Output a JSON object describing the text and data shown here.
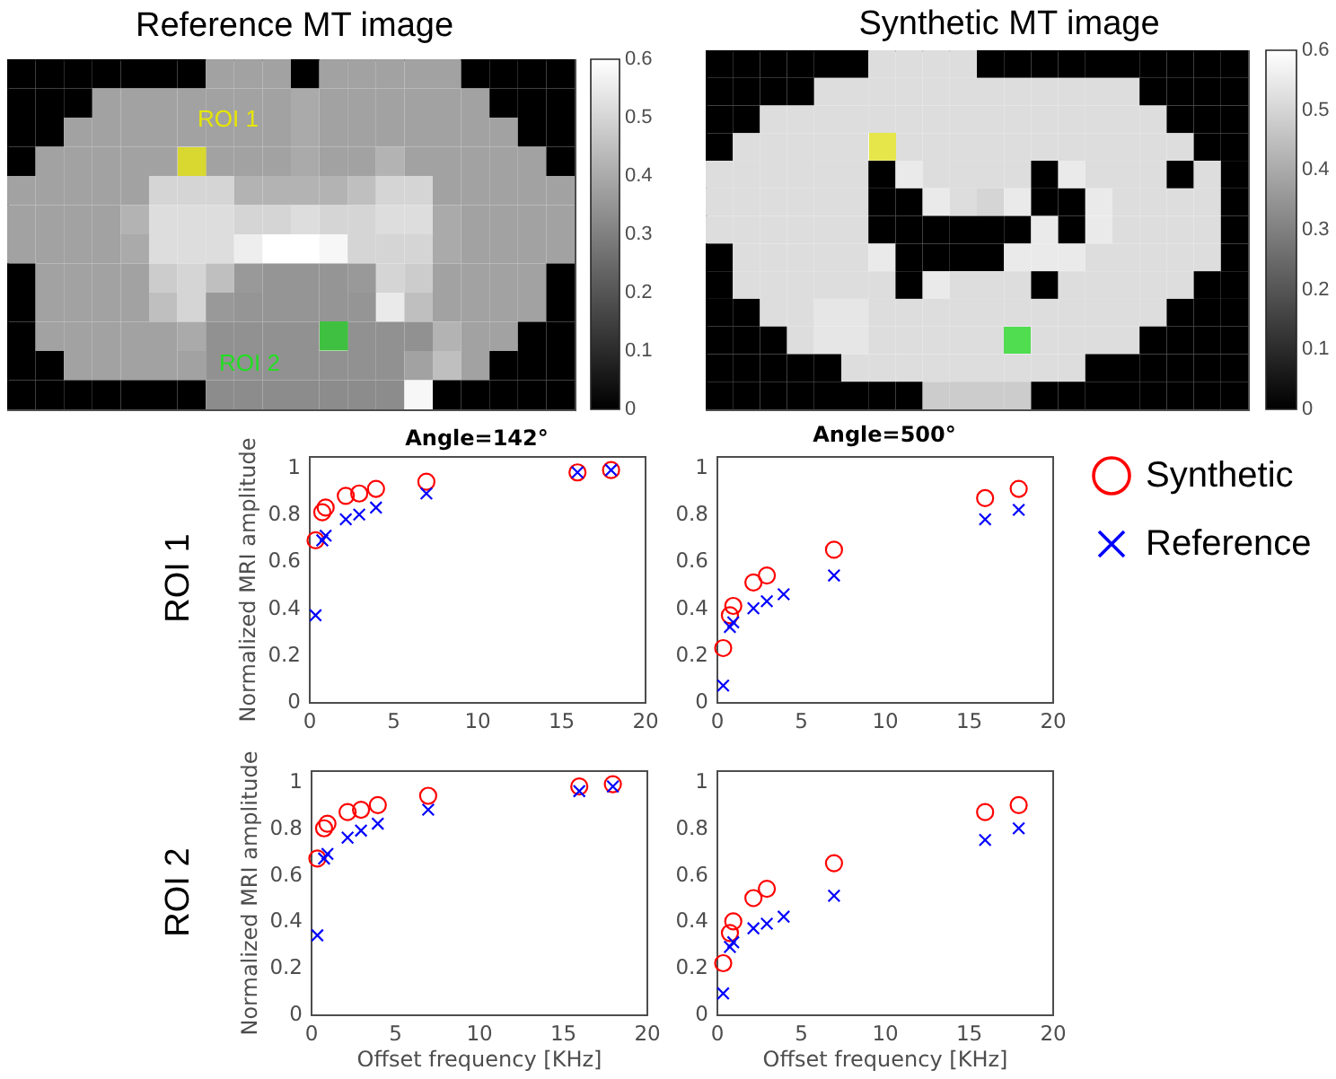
{
  "chart_data": [
    {
      "type": "heatmap",
      "title": "Reference MT image",
      "annotations": [
        "ROI 1",
        "ROI 2"
      ],
      "tick_labels": false,
      "categories": [
        null,
        null,
        null,
        null,
        null,
        null,
        null,
        null,
        null,
        null,
        null,
        null,
        null,
        null,
        null,
        null,
        null,
        null,
        null,
        null
      ],
      "y_categories": [
        null,
        null,
        null,
        null,
        null,
        null,
        null,
        null,
        null,
        null,
        null,
        null
      ],
      "cells": [
        [
          0,
          0,
          0,
          0,
          0,
          0,
          0,
          0.38,
          0.38,
          0.38,
          0,
          0.38,
          0.38,
          0.38,
          0.38,
          0.38,
          0,
          0,
          0,
          0
        ],
        [
          0,
          0,
          0,
          0.38,
          0.38,
          0.38,
          0.38,
          0.38,
          0.38,
          0.38,
          0.4,
          0.38,
          0.38,
          0.38,
          0.38,
          0.38,
          0.38,
          0,
          0,
          0
        ],
        [
          0,
          0,
          0.38,
          0.38,
          0.38,
          0.38,
          0.38,
          0.38,
          0.38,
          0.38,
          0.4,
          0.38,
          0.38,
          0.38,
          0.38,
          0.38,
          0.38,
          0.38,
          0,
          0
        ],
        [
          0,
          0.38,
          0.38,
          0.38,
          0.38,
          0.38,
          null,
          0.38,
          0.38,
          0.38,
          0.4,
          0.38,
          0.38,
          0.42,
          0.38,
          0.38,
          0.38,
          0.38,
          0.38,
          0
        ],
        [
          0.38,
          0.38,
          0.38,
          0.38,
          0.38,
          0.5,
          0.5,
          0.5,
          0.42,
          0.42,
          0.42,
          0.42,
          0.45,
          0.5,
          0.5,
          0.38,
          0.38,
          0.38,
          0.38,
          0.38
        ],
        [
          0.38,
          0.38,
          0.38,
          0.38,
          0.42,
          0.52,
          0.52,
          0.52,
          0.5,
          0.5,
          0.52,
          0.5,
          0.5,
          0.52,
          0.52,
          0.4,
          0.38,
          0.38,
          0.38,
          0.38
        ],
        [
          0.38,
          0.38,
          0.38,
          0.38,
          0.4,
          0.52,
          0.52,
          0.52,
          0.56,
          0.6,
          0.6,
          0.58,
          0.5,
          0.5,
          0.5,
          0.4,
          0.38,
          0.38,
          0.38,
          0.38
        ],
        [
          0,
          0.38,
          0.38,
          0.38,
          0.38,
          0.48,
          0.5,
          0.45,
          0.36,
          0.35,
          0.35,
          0.35,
          0.36,
          0.5,
          0.48,
          0.38,
          0.38,
          0.38,
          0.38,
          0
        ],
        [
          0,
          0.38,
          0.38,
          0.38,
          0.38,
          0.45,
          0.5,
          0.36,
          0.35,
          0.35,
          0.35,
          0.35,
          0.35,
          0.55,
          0.45,
          0.38,
          0.38,
          0.38,
          0.38,
          0
        ],
        [
          0,
          0.38,
          0.38,
          0.38,
          0.38,
          0.38,
          0.4,
          0.34,
          0.34,
          0.34,
          0.34,
          null,
          0.34,
          0.34,
          0.34,
          0.42,
          0.38,
          0.38,
          0,
          0
        ],
        [
          0,
          0,
          0.38,
          0.38,
          0.38,
          0.38,
          0.38,
          0.34,
          0.34,
          0.34,
          0.34,
          0.34,
          0.34,
          0.34,
          0.38,
          0.45,
          0.38,
          0,
          0,
          0
        ],
        [
          0,
          0,
          0,
          0,
          0,
          0,
          0,
          0.33,
          0.33,
          0.33,
          0.33,
          0.33,
          0.33,
          0.33,
          0.58,
          0,
          0,
          0,
          0,
          0
        ]
      ],
      "clim": [
        0,
        0.6
      ],
      "cticks": [
        0,
        0.1,
        0.2,
        0.3,
        0.4,
        0.5,
        0.6
      ]
    },
    {
      "type": "heatmap",
      "title": "Synthetic MT image",
      "tick_labels": false,
      "categories": [
        null,
        null,
        null,
        null,
        null,
        null,
        null,
        null,
        null,
        null,
        null,
        null,
        null,
        null,
        null,
        null,
        null,
        null,
        null,
        null
      ],
      "y_categories": [
        null,
        null,
        null,
        null,
        null,
        null,
        null,
        null,
        null,
        null,
        null,
        null,
        null
      ],
      "cells": [
        [
          0,
          0,
          0,
          0,
          0,
          0,
          0.52,
          0.52,
          0.52,
          0.52,
          0,
          0,
          0,
          0,
          0,
          0,
          0,
          0,
          0,
          0
        ],
        [
          0,
          0,
          0,
          0,
          0.52,
          0.52,
          0.52,
          0.52,
          0.52,
          0.52,
          0.52,
          0.52,
          0.52,
          0.52,
          0.52,
          0.52,
          0,
          0,
          0,
          0
        ],
        [
          0,
          0,
          0.52,
          0.52,
          0.52,
          0.52,
          0.52,
          0.52,
          0.52,
          0.52,
          0.52,
          0.52,
          0.52,
          0.52,
          0.52,
          0.52,
          0.52,
          0,
          0,
          0
        ],
        [
          0,
          0.52,
          0.52,
          0.52,
          0.52,
          0.52,
          null,
          0.52,
          0.52,
          0.52,
          0.52,
          0.52,
          0.52,
          0.52,
          0.52,
          0.52,
          0.52,
          0.52,
          0,
          0
        ],
        [
          0.52,
          0.52,
          0.52,
          0.52,
          0.52,
          0.52,
          0,
          0.55,
          0.52,
          0.52,
          0.52,
          0.52,
          0,
          0.55,
          0.52,
          0.52,
          0.52,
          0,
          0.52,
          0
        ],
        [
          0.52,
          0.52,
          0.52,
          0.52,
          0.52,
          0.52,
          0,
          0,
          0.55,
          0.52,
          0.5,
          0.55,
          0,
          0,
          0.55,
          0.52,
          0.52,
          0.52,
          0.52,
          0
        ],
        [
          0.52,
          0.52,
          0.52,
          0.52,
          0.52,
          0.52,
          0,
          0,
          0,
          0,
          0,
          0,
          0.55,
          0,
          0.55,
          0.52,
          0.52,
          0.52,
          0.52,
          0
        ],
        [
          0,
          0.52,
          0.52,
          0.52,
          0.52,
          0.52,
          0.55,
          0,
          0,
          0,
          0,
          0.55,
          0.55,
          0.55,
          0.52,
          0.52,
          0.52,
          0.52,
          0.52,
          0
        ],
        [
          0,
          0.52,
          0.52,
          0.52,
          0.52,
          0.52,
          0.52,
          0,
          0.55,
          0.52,
          0.52,
          0.52,
          0,
          0.52,
          0.52,
          0.52,
          0.52,
          0.52,
          0,
          0
        ],
        [
          0,
          0,
          0.52,
          0.52,
          0.54,
          0.54,
          0.52,
          0.52,
          0.52,
          0.52,
          0.52,
          0.52,
          0.52,
          0.52,
          0.52,
          0.52,
          0.52,
          0,
          0,
          0
        ],
        [
          0,
          0,
          0,
          0.52,
          0.54,
          0.54,
          0.52,
          0.52,
          0.52,
          0.52,
          0.52,
          null,
          0.52,
          0.52,
          0.52,
          0.52,
          0,
          0,
          0,
          0
        ],
        [
          0,
          0,
          0,
          0,
          0,
          0.52,
          0.52,
          0.52,
          0.52,
          0.52,
          0.52,
          0.52,
          0.52,
          0.52,
          0,
          0,
          0,
          0,
          0,
          0
        ],
        [
          0,
          0,
          0,
          0,
          0,
          0,
          0,
          0,
          0.48,
          0.48,
          0.48,
          0.48,
          0,
          0,
          0,
          0,
          0,
          0,
          0,
          0
        ]
      ],
      "clim": [
        0,
        0.6
      ],
      "cticks": [
        0,
        0.1,
        0.2,
        0.3,
        0.4,
        0.5,
        0.6
      ]
    },
    {
      "type": "scatter",
      "title": "Angle=142°",
      "ylabel": "Normalized MRI amplitude",
      "annotations": [
        "ROI 1"
      ],
      "x": [
        0.4,
        0.8,
        1,
        2.2,
        3,
        4,
        7,
        16,
        18
      ],
      "series": [
        {
          "color": "#ff0000",
          "marker": "circle",
          "values": [
            0.69,
            0.81,
            0.83,
            0.88,
            0.89,
            0.91,
            0.94,
            0.98,
            0.99
          ]
        },
        {
          "color": "#0000ff",
          "marker": "cross",
          "values": [
            0.37,
            0.69,
            0.71,
            0.78,
            0.8,
            0.83,
            0.89,
            0.98,
            0.99
          ]
        }
      ],
      "xlim": [
        0,
        20
      ],
      "xticks": [
        0,
        5,
        10,
        15,
        20
      ],
      "ylim": [
        0,
        1.05
      ],
      "yticks": [
        0,
        0.2,
        0.4,
        0.6,
        0.8,
        1
      ]
    },
    {
      "type": "scatter",
      "title": "Angle=500°",
      "legend": "right",
      "x": [
        0.4,
        0.8,
        1,
        2.2,
        3,
        4,
        7,
        16,
        18
      ],
      "series": [
        {
          "name": "Synthetic",
          "color": "#ff0000",
          "marker": "circle",
          "values": [
            0.23,
            0.37,
            0.41,
            0.51,
            0.54,
            null,
            0.65,
            0.87,
            0.91
          ]
        },
        {
          "name": "Reference",
          "color": "#0000ff",
          "marker": "cross",
          "values": [
            0.07,
            0.32,
            0.34,
            0.4,
            0.43,
            0.46,
            0.54,
            0.78,
            0.82
          ]
        }
      ],
      "xlim": [
        0,
        20
      ],
      "xticks": [
        0,
        5,
        10,
        15,
        20
      ],
      "ylim": [
        0,
        1.05
      ],
      "yticks": [
        0,
        0.2,
        0.4,
        0.6,
        0.8,
        1
      ]
    },
    {
      "type": "scatter",
      "xlabel": "Offset frequency [KHz]",
      "ylabel": "Normalized MRI amplitude",
      "annotations": [
        "ROI 2"
      ],
      "x": [
        0.4,
        0.8,
        1,
        2.2,
        3,
        4,
        7,
        16,
        18
      ],
      "series": [
        {
          "color": "#ff0000",
          "marker": "circle",
          "values": [
            0.67,
            0.8,
            0.82,
            0.87,
            0.88,
            0.9,
            0.94,
            0.98,
            0.99
          ]
        },
        {
          "color": "#0000ff",
          "marker": "cross",
          "values": [
            0.34,
            0.67,
            0.69,
            0.76,
            0.79,
            0.82,
            0.88,
            0.96,
            0.98
          ]
        }
      ],
      "xlim": [
        0,
        20
      ],
      "xticks": [
        0,
        5,
        10,
        15,
        20
      ],
      "ylim": [
        0,
        1.05
      ],
      "yticks": [
        0,
        0.2,
        0.4,
        0.6,
        0.8,
        1
      ]
    },
    {
      "type": "scatter",
      "xlabel": "Offset frequency [KHz]",
      "x": [
        0.4,
        0.8,
        1,
        2.2,
        3,
        4,
        7,
        16,
        18
      ],
      "series": [
        {
          "color": "#ff0000",
          "marker": "circle",
          "values": [
            0.22,
            0.35,
            0.4,
            0.5,
            0.54,
            null,
            0.65,
            0.87,
            0.9
          ]
        },
        {
          "color": "#0000ff",
          "marker": "cross",
          "values": [
            0.09,
            0.29,
            0.31,
            0.37,
            0.39,
            0.42,
            0.51,
            0.75,
            0.8
          ]
        }
      ],
      "xlim": [
        0,
        20
      ],
      "xticks": [
        0,
        5,
        10,
        15,
        20
      ],
      "ylim": [
        0,
        1.05
      ],
      "yticks": [
        0,
        0.2,
        0.4,
        0.6,
        0.8,
        1
      ]
    }
  ]
}
